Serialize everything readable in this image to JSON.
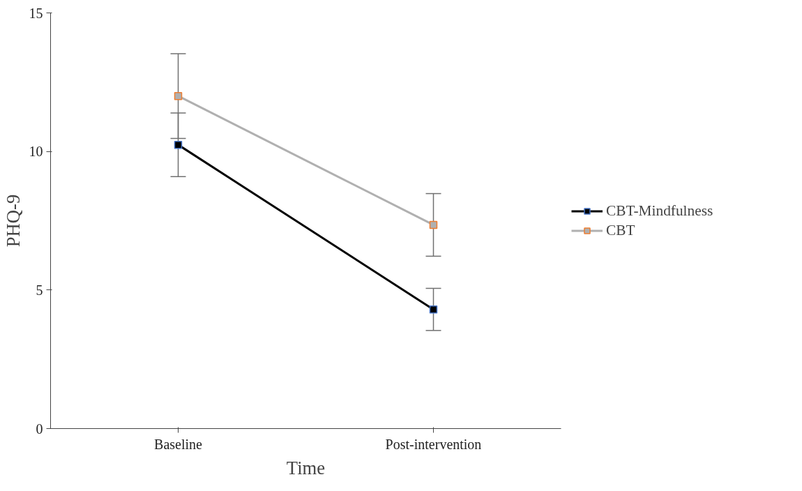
{
  "chart_data": {
    "type": "line",
    "xlabel": "Time",
    "ylabel": "PHQ-9",
    "categories": [
      "Baseline",
      "Post-intervention"
    ],
    "series": [
      {
        "name": "CBT-Mindfulness",
        "color": "#000000",
        "values": [
          10.24,
          4.3
        ],
        "errors": [
          1.15,
          0.76
        ]
      },
      {
        "name": "CBT",
        "color": "#b0b0b0",
        "values": [
          12.0,
          7.35
        ],
        "errors": [
          1.53,
          1.13
        ]
      }
    ],
    "ylim": [
      0,
      15
    ],
    "yticks": [
      0,
      5,
      10,
      15
    ],
    "grid": false,
    "legend": "right",
    "marker": "square",
    "line_style": "solid"
  }
}
